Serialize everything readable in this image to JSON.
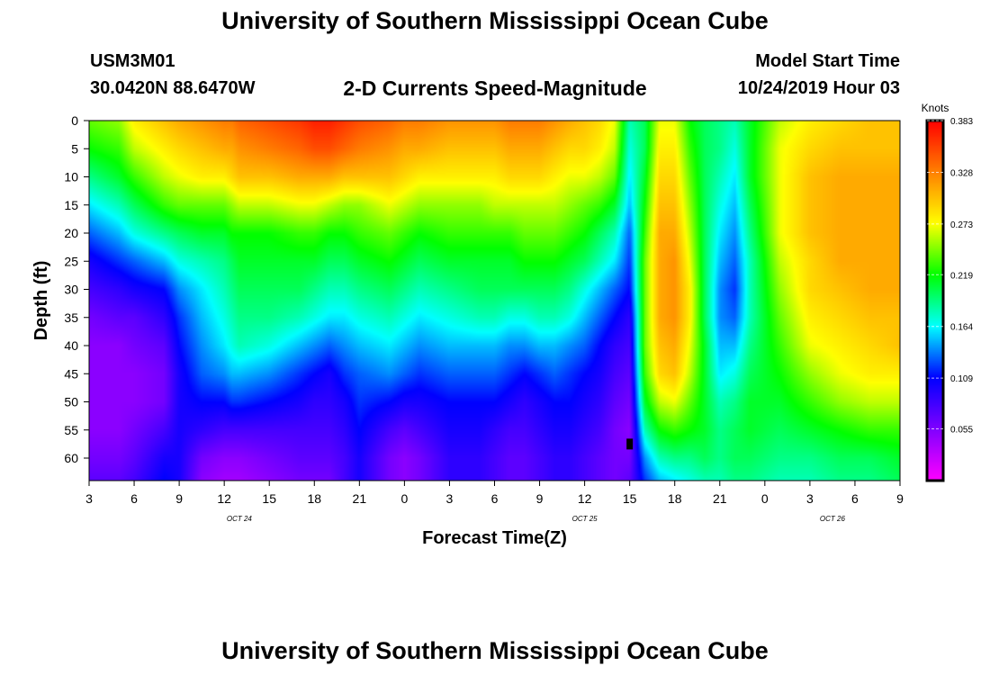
{
  "header": {
    "title_top": "University of Southern Mississippi Ocean Cube",
    "title_bottom": "University of Southern Mississippi Ocean Cube",
    "station_id": "USM3M01",
    "coordinates": "30.0420N 88.6470W",
    "product": "2-D Currents Speed-Magnitude",
    "model_start_label": "Model Start Time",
    "model_start_value": "10/24/2019 Hour 03"
  },
  "chart_data": {
    "type": "heatmap",
    "title": "2-D Currents Speed-Magnitude",
    "xlabel": "Forecast Time(Z)",
    "ylabel": "Depth (ft)",
    "x_ticks": [
      "3",
      "6",
      "9",
      "12",
      "15",
      "18",
      "21",
      "0",
      "3",
      "6",
      "9",
      "12",
      "15",
      "18",
      "21",
      "0",
      "3",
      "6",
      "9"
    ],
    "x_range_hours": [
      0,
      54
    ],
    "date_labels": [
      {
        "label": "OCT 24",
        "hour": 10
      },
      {
        "label": "OCT 25",
        "hour": 33
      },
      {
        "label": "OCT 26",
        "hour": 49.5
      }
    ],
    "y_ticks": [
      0,
      5,
      10,
      15,
      20,
      25,
      30,
      35,
      40,
      45,
      50,
      55,
      60
    ],
    "y_range_ft": [
      0,
      64
    ],
    "colorbar": {
      "unit": "Knots",
      "min": 0.0,
      "max": 0.383,
      "tick_values": [
        "0.383",
        "0.328",
        "0.273",
        "0.219",
        "0.164",
        "0.109",
        "0.055"
      ],
      "colors": [
        "#ff00ff",
        "#8000ff",
        "#0000ff",
        "#00ffff",
        "#00ff00",
        "#ffff00",
        "#ff8000",
        "#ff0000"
      ]
    },
    "speed_field_knots": {
      "time_hours": [
        0,
        2,
        3,
        5,
        6,
        7.5,
        9,
        9.5,
        10,
        12,
        14,
        15,
        16,
        17,
        18,
        20,
        21,
        22,
        24,
        26,
        27,
        28,
        29,
        30,
        31,
        32,
        33,
        34,
        35,
        36,
        37,
        38,
        39,
        40,
        41,
        42,
        43,
        44,
        46,
        48,
        50,
        52,
        54
      ],
      "depth_ft": [
        0,
        5,
        10,
        15,
        20,
        25,
        30,
        35,
        40,
        45,
        50,
        55,
        60,
        64
      ],
      "values": [
        [
          0.24,
          0.22,
          0.19,
          0.16,
          0.13,
          0.1,
          0.08,
          0.06,
          0.05,
          0.05,
          0.05,
          0.05,
          0.06,
          0.07
        ],
        [
          0.25,
          0.23,
          0.21,
          0.18,
          0.15,
          0.12,
          0.09,
          0.07,
          0.05,
          0.05,
          0.05,
          0.05,
          0.06,
          0.07
        ],
        [
          0.28,
          0.26,
          0.23,
          0.2,
          0.17,
          0.13,
          0.1,
          0.07,
          0.06,
          0.05,
          0.05,
          0.06,
          0.07,
          0.08
        ],
        [
          0.3,
          0.28,
          0.26,
          0.23,
          0.19,
          0.15,
          0.11,
          0.09,
          0.07,
          0.06,
          0.06,
          0.08,
          0.1,
          0.11
        ],
        [
          0.31,
          0.29,
          0.27,
          0.24,
          0.2,
          0.17,
          0.14,
          0.12,
          0.11,
          0.1,
          0.1,
          0.1,
          0.1,
          0.1
        ],
        [
          0.32,
          0.3,
          0.28,
          0.24,
          0.21,
          0.18,
          0.16,
          0.15,
          0.14,
          0.13,
          0.11,
          0.09,
          0.06,
          0.05
        ],
        [
          0.33,
          0.31,
          0.28,
          0.24,
          0.21,
          0.19,
          0.18,
          0.17,
          0.16,
          0.14,
          0.11,
          0.08,
          0.05,
          0.04
        ],
        [
          0.33,
          0.31,
          0.29,
          0.25,
          0.22,
          0.2,
          0.19,
          0.18,
          0.17,
          0.15,
          0.12,
          0.08,
          0.05,
          0.04
        ],
        [
          0.34,
          0.32,
          0.3,
          0.26,
          0.22,
          0.21,
          0.2,
          0.19,
          0.18,
          0.15,
          0.12,
          0.08,
          0.05,
          0.04
        ],
        [
          0.35,
          0.33,
          0.3,
          0.26,
          0.22,
          0.21,
          0.2,
          0.19,
          0.17,
          0.14,
          0.11,
          0.08,
          0.06,
          0.05
        ],
        [
          0.36,
          0.34,
          0.31,
          0.27,
          0.23,
          0.21,
          0.2,
          0.18,
          0.15,
          0.12,
          0.1,
          0.08,
          0.07,
          0.06
        ],
        [
          0.37,
          0.35,
          0.31,
          0.27,
          0.23,
          0.21,
          0.19,
          0.17,
          0.14,
          0.11,
          0.09,
          0.08,
          0.07,
          0.06
        ],
        [
          0.37,
          0.35,
          0.31,
          0.26,
          0.22,
          0.2,
          0.18,
          0.16,
          0.13,
          0.1,
          0.09,
          0.08,
          0.07,
          0.06
        ],
        [
          0.36,
          0.34,
          0.3,
          0.25,
          0.22,
          0.2,
          0.18,
          0.16,
          0.14,
          0.12,
          0.1,
          0.09,
          0.08,
          0.08
        ],
        [
          0.35,
          0.33,
          0.3,
          0.25,
          0.23,
          0.21,
          0.19,
          0.17,
          0.15,
          0.13,
          0.12,
          0.11,
          0.1,
          0.1
        ],
        [
          0.34,
          0.32,
          0.3,
          0.27,
          0.24,
          0.22,
          0.2,
          0.18,
          0.16,
          0.14,
          0.11,
          0.08,
          0.06,
          0.06
        ],
        [
          0.33,
          0.31,
          0.29,
          0.26,
          0.23,
          0.21,
          0.19,
          0.17,
          0.15,
          0.13,
          0.1,
          0.07,
          0.05,
          0.05
        ],
        [
          0.33,
          0.31,
          0.28,
          0.25,
          0.22,
          0.2,
          0.18,
          0.16,
          0.14,
          0.12,
          0.1,
          0.08,
          0.06,
          0.06
        ],
        [
          0.32,
          0.3,
          0.28,
          0.25,
          0.23,
          0.21,
          0.19,
          0.17,
          0.15,
          0.13,
          0.11,
          0.1,
          0.09,
          0.09
        ],
        [
          0.32,
          0.3,
          0.28,
          0.25,
          0.23,
          0.21,
          0.2,
          0.18,
          0.15,
          0.13,
          0.11,
          0.1,
          0.09,
          0.09
        ],
        [
          0.32,
          0.3,
          0.28,
          0.26,
          0.23,
          0.21,
          0.2,
          0.18,
          0.15,
          0.13,
          0.11,
          0.09,
          0.08,
          0.08
        ],
        [
          0.33,
          0.31,
          0.29,
          0.26,
          0.23,
          0.21,
          0.2,
          0.17,
          0.14,
          0.12,
          0.1,
          0.08,
          0.07,
          0.07
        ],
        [
          0.33,
          0.31,
          0.29,
          0.26,
          0.24,
          0.22,
          0.2,
          0.17,
          0.14,
          0.11,
          0.09,
          0.08,
          0.07,
          0.07
        ],
        [
          0.33,
          0.31,
          0.29,
          0.26,
          0.24,
          0.22,
          0.2,
          0.18,
          0.15,
          0.12,
          0.1,
          0.09,
          0.08,
          0.08
        ],
        [
          0.32,
          0.3,
          0.28,
          0.26,
          0.24,
          0.22,
          0.2,
          0.18,
          0.15,
          0.13,
          0.11,
          0.1,
          0.09,
          0.09
        ],
        [
          0.31,
          0.29,
          0.27,
          0.25,
          0.23,
          0.21,
          0.19,
          0.17,
          0.14,
          0.12,
          0.11,
          0.1,
          0.09,
          0.09
        ],
        [
          0.3,
          0.29,
          0.27,
          0.24,
          0.22,
          0.2,
          0.17,
          0.15,
          0.13,
          0.11,
          0.1,
          0.09,
          0.08,
          0.08
        ],
        [
          0.29,
          0.28,
          0.26,
          0.23,
          0.2,
          0.18,
          0.15,
          0.13,
          0.11,
          0.1,
          0.09,
          0.08,
          0.07,
          0.07
        ],
        [
          0.27,
          0.26,
          0.24,
          0.21,
          0.18,
          0.16,
          0.13,
          0.11,
          0.09,
          0.08,
          0.07,
          0.06,
          0.06,
          0.06
        ],
        [
          0.18,
          0.17,
          0.16,
          0.15,
          0.13,
          0.12,
          0.11,
          0.09,
          0.08,
          0.07,
          0.06,
          0.05,
          0.06,
          0.07
        ],
        [
          0.2,
          0.2,
          0.21,
          0.22,
          0.23,
          0.24,
          0.24,
          0.24,
          0.24,
          0.23,
          0.21,
          0.18,
          0.14,
          0.12
        ],
        [
          0.27,
          0.28,
          0.29,
          0.3,
          0.31,
          0.31,
          0.31,
          0.31,
          0.3,
          0.29,
          0.26,
          0.22,
          0.18,
          0.15
        ],
        [
          0.27,
          0.28,
          0.29,
          0.3,
          0.31,
          0.32,
          0.32,
          0.32,
          0.31,
          0.3,
          0.27,
          0.23,
          0.19,
          0.16
        ],
        [
          0.22,
          0.23,
          0.24,
          0.25,
          0.26,
          0.27,
          0.28,
          0.28,
          0.27,
          0.26,
          0.24,
          0.22,
          0.19,
          0.17
        ],
        [
          0.2,
          0.2,
          0.2,
          0.2,
          0.2,
          0.2,
          0.2,
          0.2,
          0.21,
          0.21,
          0.21,
          0.21,
          0.2,
          0.18
        ],
        [
          0.19,
          0.19,
          0.18,
          0.17,
          0.16,
          0.15,
          0.14,
          0.14,
          0.15,
          0.16,
          0.18,
          0.19,
          0.19,
          0.18
        ],
        [
          0.18,
          0.17,
          0.16,
          0.15,
          0.14,
          0.13,
          0.12,
          0.13,
          0.15,
          0.17,
          0.19,
          0.2,
          0.2,
          0.19
        ],
        [
          0.21,
          0.21,
          0.21,
          0.2,
          0.19,
          0.18,
          0.18,
          0.18,
          0.19,
          0.2,
          0.21,
          0.21,
          0.2,
          0.19
        ],
        [
          0.26,
          0.27,
          0.27,
          0.27,
          0.27,
          0.26,
          0.25,
          0.24,
          0.23,
          0.22,
          0.21,
          0.2,
          0.19,
          0.18
        ],
        [
          0.28,
          0.29,
          0.3,
          0.3,
          0.3,
          0.29,
          0.29,
          0.28,
          0.27,
          0.25,
          0.23,
          0.21,
          0.19,
          0.18
        ],
        [
          0.29,
          0.3,
          0.31,
          0.31,
          0.31,
          0.31,
          0.3,
          0.29,
          0.28,
          0.27,
          0.25,
          0.22,
          0.2,
          0.19
        ],
        [
          0.3,
          0.3,
          0.31,
          0.31,
          0.31,
          0.31,
          0.31,
          0.3,
          0.29,
          0.28,
          0.26,
          0.23,
          0.2,
          0.19
        ],
        [
          0.3,
          0.3,
          0.31,
          0.31,
          0.31,
          0.31,
          0.31,
          0.3,
          0.3,
          0.28,
          0.26,
          0.23,
          0.21,
          0.2
        ]
      ]
    },
    "annotations": [
      {
        "type": "marker",
        "time_hour": 36,
        "depth_ft": 57.5,
        "color": "#000000"
      }
    ]
  }
}
